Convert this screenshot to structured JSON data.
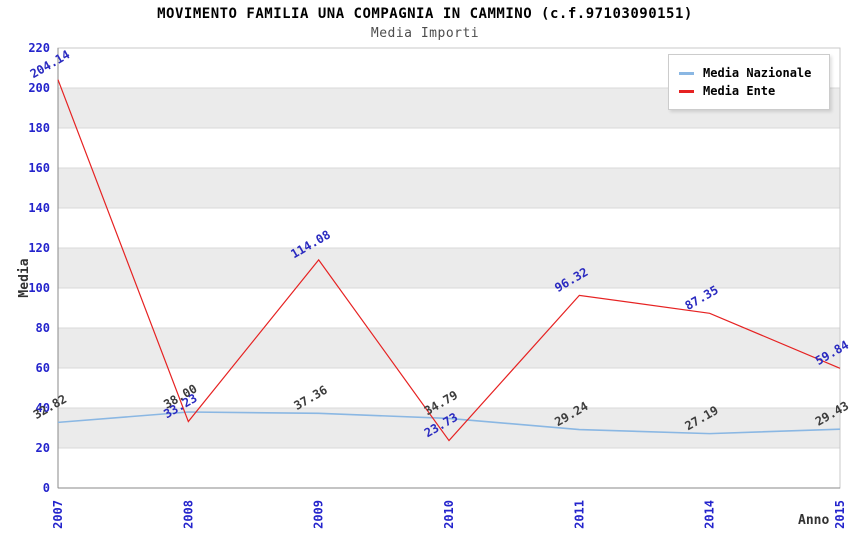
{
  "title": "MOVIMENTO FAMILIA UNA COMPAGNIA IN CAMMINO (c.f.97103090151)",
  "subtitle": "Media Importi",
  "colors": {
    "band": "#ebebeb",
    "gridline": "#d8d8d8",
    "plot_border": "#c9c9c9",
    "spine": "#8a8a8a",
    "tick_label": "#2424cc",
    "axis_title": "#333333",
    "title_text": "#000000",
    "subtitle_text": "#4d4d4d",
    "legend_bg": "#ffffff",
    "legend_border": "#cccccc",
    "background": "#ffffff"
  },
  "chart_data": {
    "type": "line",
    "title": "MOVIMENTO FAMILIA UNA COMPAGNIA IN CAMMINO (c.f.97103090151)",
    "subtitle": "Media Importi",
    "xlabel": "Anno",
    "ylabel": "Media",
    "categories": [
      "2007",
      "2008",
      "2009",
      "2010",
      "2011",
      "2014",
      "2015"
    ],
    "series": [
      {
        "name": "Media Nazionale",
        "color": "#8ab7e3",
        "label_color": "#3c3c3c",
        "stroke_width": 1.6,
        "values": [
          32.82,
          38.0,
          37.36,
          34.79,
          29.24,
          27.19,
          29.43
        ]
      },
      {
        "name": "Media Ente",
        "color": "#e62222",
        "label_color": "#2a2ac0",
        "stroke_width": 1.2,
        "values": [
          204.14,
          33.23,
          114.08,
          23.73,
          96.32,
          87.35,
          59.84
        ]
      }
    ],
    "ylim": [
      0,
      220
    ],
    "ytick_step": 20,
    "value_decimals": 2,
    "label_rotation": -30,
    "xtick_rotation": -90,
    "grid": "horizontal-bands",
    "legend_position": "top-right"
  }
}
